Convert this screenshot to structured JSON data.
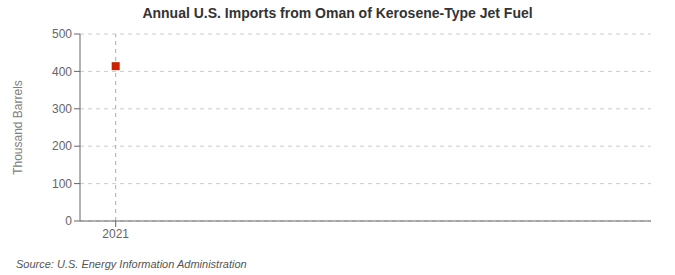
{
  "chart_data": {
    "type": "scatter",
    "title": "Annual U.S. Imports from Oman of Kerosene-Type Jet Fuel",
    "ylabel": "Thousand Barrels",
    "source": "Source: U.S. Energy Information Administration",
    "x": [
      2021
    ],
    "values": [
      414
    ],
    "color": "#cc2200",
    "marker": "square",
    "xlim": [
      2020.7,
      2025.5
    ],
    "xticks": [
      2021
    ],
    "ylim": [
      0,
      500
    ],
    "yticks": [
      0,
      100,
      200,
      300,
      400,
      500
    ],
    "grid": true
  }
}
